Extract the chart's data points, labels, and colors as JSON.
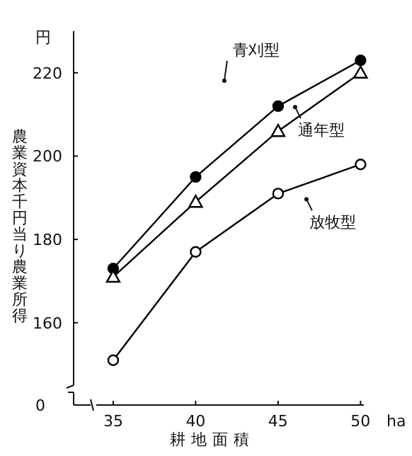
{
  "chart_data": {
    "type": "line",
    "xlabel": "耕地面積",
    "ylabel": "農業資本千円当り農業所得",
    "x": [
      35,
      40,
      45,
      50
    ],
    "series": [
      {
        "name": "青刈型",
        "color": "#000000",
        "marker": "circle",
        "values": [
          173,
          195,
          212,
          223
        ]
      },
      {
        "name": "通年型",
        "color": "#000000",
        "marker": "triangle",
        "values": [
          171,
          189,
          206,
          220
        ]
      },
      {
        "name": "放牧型",
        "color": "#000000",
        "marker": "circle",
        "values": [
          151,
          177,
          191,
          198
        ]
      }
    ],
    "xlim": [
      32.6,
      50.2
    ],
    "ylim": [
      145,
      230
    ],
    "xticks": [
      35,
      40,
      45,
      50
    ],
    "yticks": [
      160,
      180,
      200,
      220
    ],
    "annotations": [
      "円",
      "ha",
      "0"
    ],
    "grid": false,
    "legend": false,
    "line_style": "solid"
  }
}
